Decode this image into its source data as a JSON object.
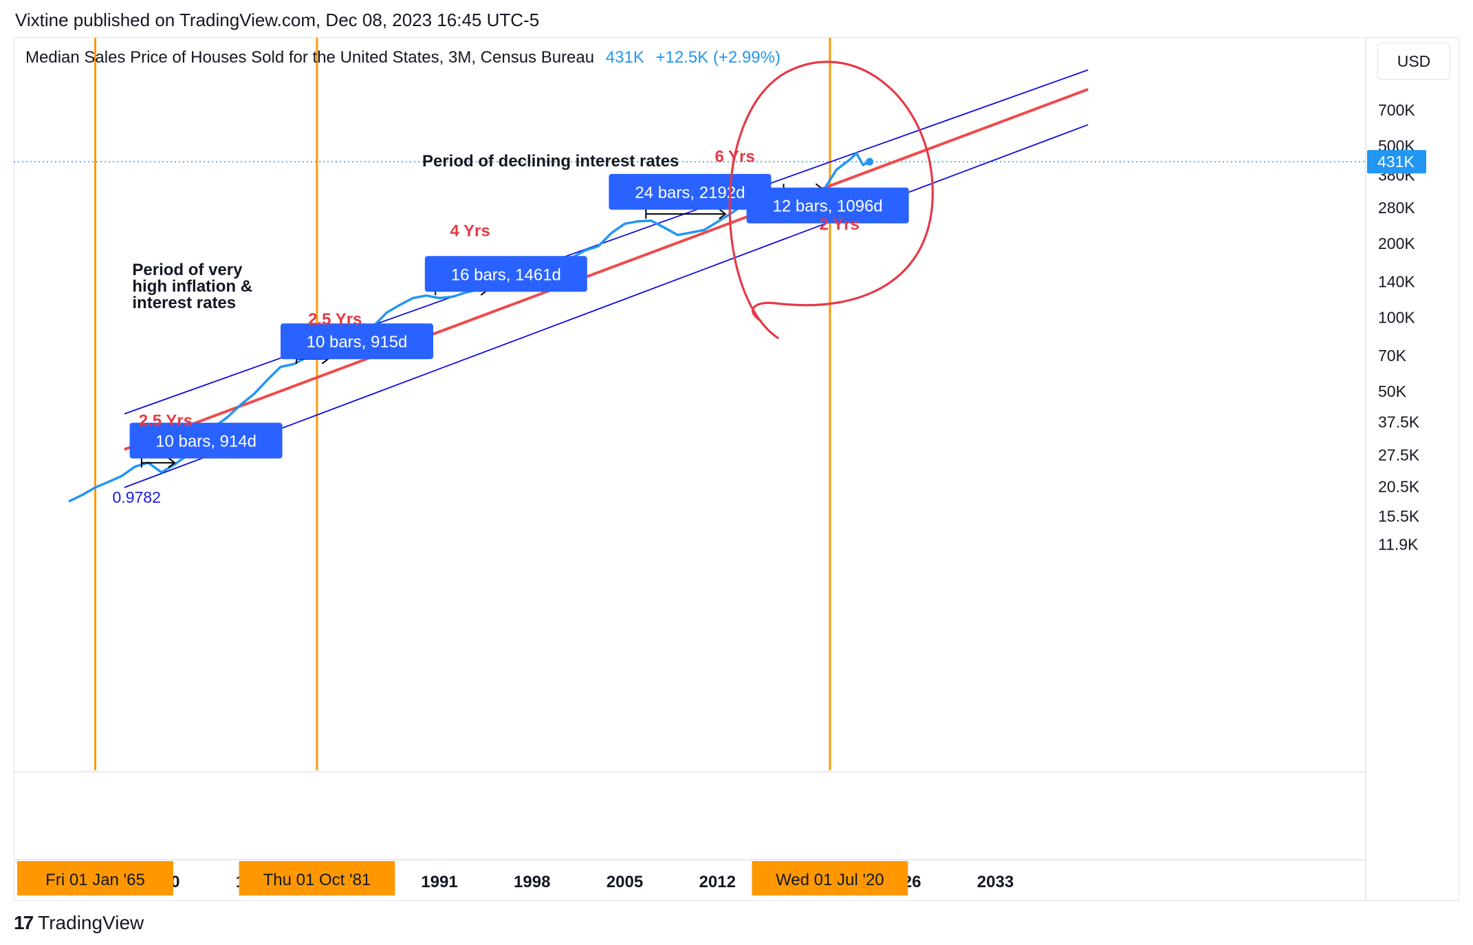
{
  "header": {
    "published": "Vixtine published on TradingView.com, Dec 08, 2023 16:45 UTC-5"
  },
  "legend": {
    "title": "Median Sales Price of Houses Sold for the United States, 3M, Census Bureau",
    "price": "431K",
    "change": "+12.5K (+2.99%)"
  },
  "currency_button": "USD",
  "footer": {
    "logo": "17",
    "brand": "TradingView"
  },
  "colors": {
    "series": "#2196f3",
    "channel": "#0c0ce0",
    "midline": "#f04a4a",
    "vline": "#ff9800",
    "badge": "#2962ff",
    "annotation_red": "#e53946"
  },
  "chart_data": {
    "type": "line",
    "title": "Median Sales Price of Houses Sold for the United States, 3M, Census Bureau",
    "y_scale": "log",
    "ylim": [
      11900,
      1000000
    ],
    "x_ticks": [
      "1970",
      "1977",
      "1991",
      "1998",
      "2005",
      "2012",
      "2026",
      "2033"
    ],
    "y_ticks": [
      "700K",
      "500K",
      "380K",
      "280K",
      "200K",
      "140K",
      "100K",
      "70K",
      "50K",
      "37.5K",
      "27.5K",
      "20.5K",
      "15.5K",
      "11.9K"
    ],
    "last_value_label": "431K",
    "series": [
      {
        "x": [
          1963.0,
          1964.0,
          1965.0,
          1966.0,
          1967.0,
          1968.0,
          1969.0,
          1970.0,
          1971.0,
          1972.0,
          1973.0,
          1974.0,
          1975.0,
          1976.0,
          1977.0,
          1978.0,
          1979.0,
          1980.0,
          1981.0,
          1982.0,
          1983.0,
          1984.0,
          1985.0,
          1986.0,
          1987.0,
          1988.0,
          1989.0,
          1990.0,
          1991.0,
          1992.0,
          1993.0,
          1994.0,
          1995.0,
          1996.0,
          1997.0,
          1998.0,
          1999.0,
          2000.0,
          2001.0,
          2002.0,
          2003.0,
          2004.0,
          2005.0,
          2006.0,
          2007.0,
          2008.0,
          2009.0,
          2010.0,
          2011.0,
          2012.0,
          2013.0,
          2014.0,
          2015.0,
          2016.0,
          2017.0,
          2018.0,
          2019.0,
          2020.0,
          2021.0,
          2022.0,
          2022.5,
          2023.0,
          2023.5
        ],
        "values": [
          17800,
          18900,
          20300,
          21400,
          22600,
          24700,
          25600,
          23400,
          25200,
          27600,
          32500,
          35900,
          39300,
          44200,
          48800,
          55700,
          62900,
          64600,
          68900,
          69300,
          75300,
          79900,
          84300,
          92000,
          104500,
          112500,
          120000,
          122900,
          120000,
          121500,
          126500,
          130000,
          133900,
          140000,
          146000,
          152500,
          161000,
          169000,
          175200,
          187600,
          195000,
          221000,
          240900,
          246500,
          247900,
          232100,
          216700,
          221800,
          227200,
          245200,
          265000,
          288500,
          294000,
          313000,
          323000,
          325000,
          321500,
          329000,
          400000,
          440000,
          467000,
          418000,
          431000
        ]
      }
    ],
    "annotations": {
      "texts": [
        "Period of very",
        "high inflation &",
        "interest rates",
        "Period of declining interest rates"
      ],
      "ranges": [
        "2.5 Yrs",
        "2.5 Yrs",
        "4 Yrs",
        "6 Yrs",
        "2 Yrs"
      ],
      "badges": [
        "10 bars, 914d",
        "10 bars, 915d",
        "16 bars, 1461d",
        "24 bars, 2192d",
        "12 bars, 1096d"
      ],
      "channel_label": "0.9782",
      "date_labels": [
        "Fri 01 Jan '65",
        "Thu 01 Oct '81",
        "Wed 01 Jul '20"
      ]
    }
  }
}
